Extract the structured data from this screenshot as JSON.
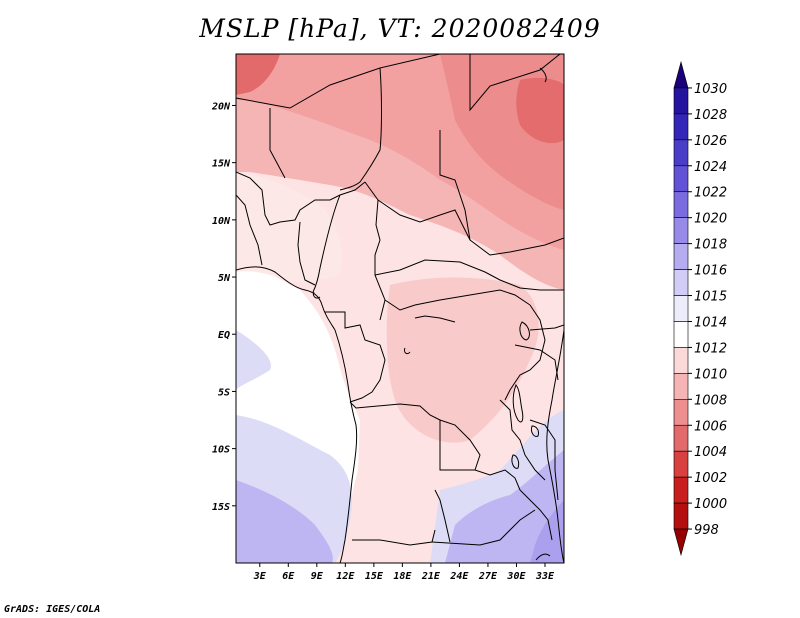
{
  "title": "MSLP [hPa], VT: 2020082409",
  "credit": "GrADS: IGES/COLA",
  "map": {
    "lat_labels": [
      "20N",
      "15N",
      "10N",
      "5N",
      "EQ",
      "5S",
      "10S",
      "15S"
    ],
    "lat_values": [
      20,
      15,
      10,
      5,
      0,
      -5,
      -10,
      -15
    ],
    "lon_labels": [
      "3E",
      "6E",
      "9E",
      "12E",
      "15E",
      "18E",
      "21E",
      "24E",
      "27E",
      "30E",
      "33E"
    ],
    "lon_values": [
      3,
      6,
      9,
      12,
      15,
      18,
      21,
      24,
      27,
      30,
      33
    ],
    "lat_range": [
      -20,
      24.5
    ],
    "lon_range": [
      0.5,
      35
    ]
  },
  "colorbar": {
    "levels": [
      "1030",
      "1028",
      "1026",
      "1024",
      "1022",
      "1020",
      "1018",
      "1016",
      "1015",
      "1014",
      "1012",
      "1010",
      "1008",
      "1006",
      "1004",
      "1002",
      "1000",
      "998"
    ],
    "colors": [
      "#1a007a",
      "#2414a0",
      "#3326b8",
      "#4a3ec8",
      "#6152d6",
      "#7a6be0",
      "#978ae8",
      "#b6adf0",
      "#d2cdf6",
      "#ececfb",
      "#ffffff",
      "#fbd9d9",
      "#f5b5b5",
      "#ed8f8f",
      "#e36a6a",
      "#d94040",
      "#c91e1e",
      "#b40f0f",
      "#960000"
    ]
  }
}
